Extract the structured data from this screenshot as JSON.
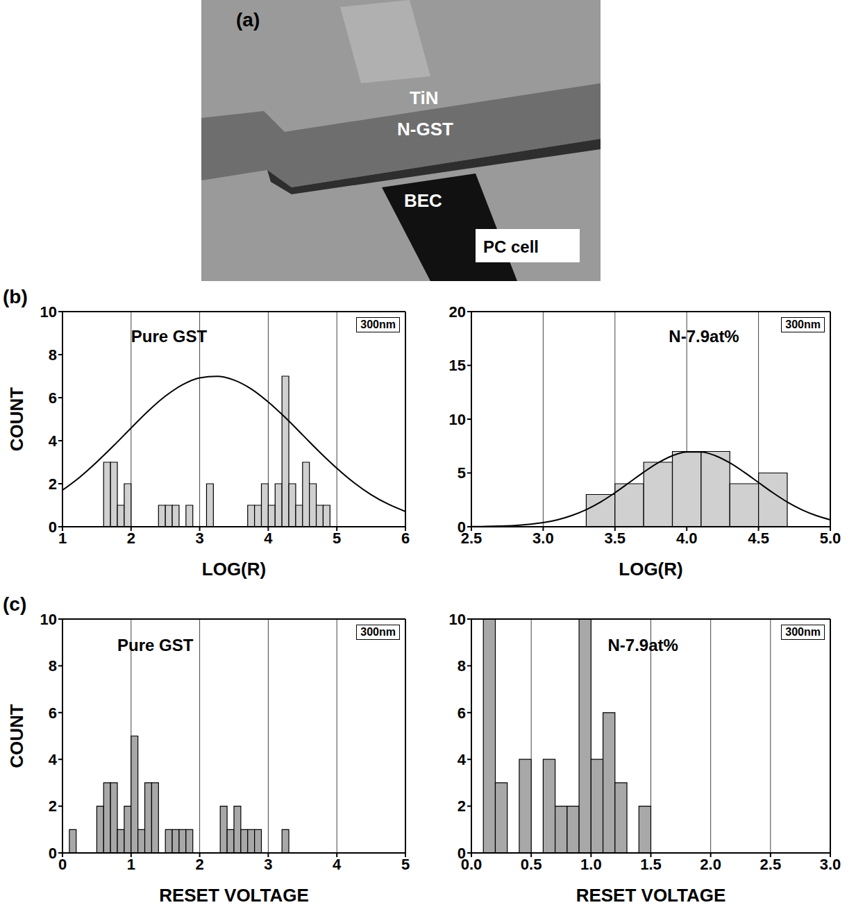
{
  "image": {
    "label": "(a)",
    "texts": [
      "TiN",
      "N-GST",
      "BEC",
      "PC cell"
    ]
  },
  "row_labels": [
    "(b)",
    "(c)"
  ],
  "chart_data": [
    {
      "type": "histogram",
      "title": "Pure GST",
      "annotations": [
        "300nm"
      ],
      "x_label": "LOG(R)",
      "y_label": "COUNT",
      "bins": [
        1.6,
        1.7,
        1.8,
        1.9,
        2.0,
        2.1,
        2.2,
        2.3,
        2.4,
        2.5,
        2.6,
        2.7,
        2.8,
        2.9,
        3.0,
        3.1,
        3.2,
        3.3,
        3.4,
        3.5,
        3.6,
        3.7,
        3.8,
        3.9,
        4.0,
        4.1,
        4.2,
        4.3,
        4.4,
        4.5,
        4.6,
        4.7,
        4.8,
        4.9
      ],
      "counts": [
        3,
        3,
        1,
        2,
        0,
        0,
        0,
        0,
        1,
        1,
        1,
        0,
        1,
        0,
        0,
        2,
        0,
        0,
        0,
        0,
        0,
        1,
        1,
        2,
        1,
        2,
        7,
        2,
        1,
        3,
        2,
        1,
        1
      ],
      "color": "#d0d0d0",
      "curve": {
        "x": [
          1,
          1.25,
          1.5,
          1.75,
          2,
          2.25,
          2.5,
          2.75,
          3,
          3.25,
          3.5,
          3.75,
          4,
          4.25,
          4.5,
          4.75,
          5,
          5.25,
          5.5,
          5.75,
          6
        ],
        "values": [
          1.7,
          2.3,
          3.01,
          3.78,
          4.59,
          5.38,
          6.07,
          6.6,
          6.92,
          6.99,
          6.82,
          6.41,
          5.8,
          5.07,
          4.27,
          3.47,
          2.72,
          2.05,
          1.49,
          1.05,
          0.71
        ],
        "color": "#000000"
      },
      "xlim": [
        1,
        6
      ],
      "xticks": [
        1,
        2,
        3,
        4,
        5,
        6
      ],
      "ylim": [
        0,
        10
      ],
      "yticks": [
        0,
        2,
        4,
        6,
        8,
        10
      ],
      "grid": true
    },
    {
      "type": "histogram",
      "title": "N-7.9at%",
      "annotations": [
        "300nm"
      ],
      "x_label": "LOG(R)",
      "bins": [
        3.3,
        3.5,
        3.7,
        3.9,
        4.1,
        4.3,
        4.5,
        4.7
      ],
      "counts": [
        3,
        4,
        6,
        7,
        7,
        4,
        5
      ],
      "color": "#d0d0d0",
      "curve": {
        "x": [
          2.5,
          2.6,
          2.7,
          2.8,
          2.9,
          3.0,
          3.1,
          3.2,
          3.3,
          3.4,
          3.5,
          3.6,
          3.7,
          3.8,
          3.9,
          4.0,
          4.1,
          4.2,
          4.3,
          4.4,
          4.5,
          4.6,
          4.7,
          4.8,
          4.9,
          5.0
        ],
        "values": [
          0.01,
          0.03,
          0.06,
          0.11,
          0.22,
          0.38,
          0.65,
          1.05,
          1.59,
          2.3,
          3.16,
          4.11,
          5.07,
          5.94,
          6.6,
          6.95,
          6.95,
          6.6,
          5.94,
          5.07,
          4.11,
          3.16,
          2.3,
          1.59,
          1.05,
          0.65
        ],
        "color": "#000000"
      },
      "xlim": [
        2.5,
        5
      ],
      "xticks": [
        2.5,
        {
          "value": 3,
          "label": "3.0"
        },
        3.5,
        {
          "value": 4,
          "label": "4.0"
        },
        4.5,
        {
          "value": 5,
          "label": "5.0"
        }
      ],
      "ylim": [
        0,
        20
      ],
      "yticks": [
        0,
        5,
        10,
        15,
        20
      ],
      "grid": true
    },
    {
      "type": "histogram",
      "title": "Pure GST",
      "annotations": [
        "300nm"
      ],
      "x_label": "RESET VOLTAGE",
      "y_label": "COUNT",
      "bins": [
        0.1,
        0.2,
        0.3,
        0.4,
        0.5,
        0.6,
        0.7,
        0.8,
        0.9,
        1.0,
        1.1,
        1.2,
        1.3,
        1.4,
        1.5,
        1.6,
        1.7,
        1.8,
        1.9,
        2.0,
        2.1,
        2.2,
        2.3,
        2.4,
        2.5,
        2.6,
        2.7,
        2.8,
        2.9,
        3.0,
        3.1,
        3.2,
        3.3
      ],
      "counts": [
        1,
        0,
        0,
        0,
        2,
        3,
        3,
        1,
        2,
        5,
        1,
        3,
        3,
        0,
        1,
        1,
        1,
        1,
        0,
        0,
        0,
        0,
        2,
        1,
        2,
        1,
        1,
        1,
        0,
        0,
        0,
        1
      ],
      "color": "#a8a8a8",
      "xlim": [
        0,
        5
      ],
      "xticks": [
        0,
        1,
        2,
        3,
        4,
        5
      ],
      "ylim": [
        0,
        10
      ],
      "yticks": [
        0,
        2,
        4,
        6,
        8,
        10
      ],
      "grid": true
    },
    {
      "type": "histogram",
      "title": "N-7.9at%",
      "annotations": [
        "300nm"
      ],
      "x_label": "RESET VOLTAGE",
      "bins": [
        0.1,
        0.2,
        0.3,
        0.4,
        0.5,
        0.6,
        0.7,
        0.8,
        0.9,
        1.0,
        1.1,
        1.2,
        1.3,
        1.4,
        1.5
      ],
      "counts": [
        10,
        3,
        0,
        4,
        0,
        4,
        2,
        2,
        10,
        4,
        6,
        3,
        0,
        2
      ],
      "color": "#a8a8a8",
      "xlim": [
        0,
        3
      ],
      "xticks": [
        {
          "value": 0,
          "label": "0.0"
        },
        0.5,
        {
          "value": 1,
          "label": "1.0"
        },
        1.5,
        {
          "value": 2,
          "label": "2.0"
        },
        2.5,
        {
          "value": 3,
          "label": "3.0"
        }
      ],
      "ylim": [
        0,
        10
      ],
      "yticks": [
        0,
        2,
        4,
        6,
        8,
        10
      ],
      "grid": true
    }
  ]
}
